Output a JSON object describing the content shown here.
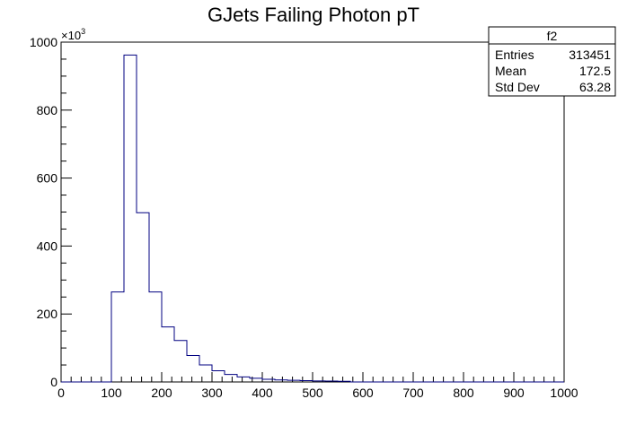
{
  "chart_data": {
    "type": "bar",
    "title": "GJets Failing Photon pT",
    "xlabel": "",
    "ylabel": "",
    "y_multiplier_label": "×10",
    "y_multiplier_exponent": "3",
    "xlim": [
      0,
      1000
    ],
    "ylim": [
      0,
      1000
    ],
    "x_ticks": [
      0,
      100,
      200,
      300,
      400,
      500,
      600,
      700,
      800,
      900,
      1000
    ],
    "y_ticks": [
      0,
      200,
      400,
      600,
      800,
      1000
    ],
    "grid": false,
    "line_color": "#000080",
    "bin_width": 25,
    "bin_edges_start": 0,
    "values": [
      0,
      0,
      0,
      0,
      265,
      962,
      498,
      265,
      162,
      122,
      78,
      50,
      33,
      22,
      15,
      11,
      8,
      6,
      5,
      4,
      3,
      2.5,
      2,
      0,
      0,
      0,
      0,
      0,
      0,
      0,
      0,
      0,
      0,
      0,
      0,
      0,
      0,
      0,
      0,
      0
    ],
    "stats": {
      "name": "f2",
      "rows": [
        {
          "label": "Entries",
          "value": "313451"
        },
        {
          "label": "Mean",
          "value": "172.5"
        },
        {
          "label": "Std Dev",
          "value": "63.28"
        }
      ]
    }
  }
}
